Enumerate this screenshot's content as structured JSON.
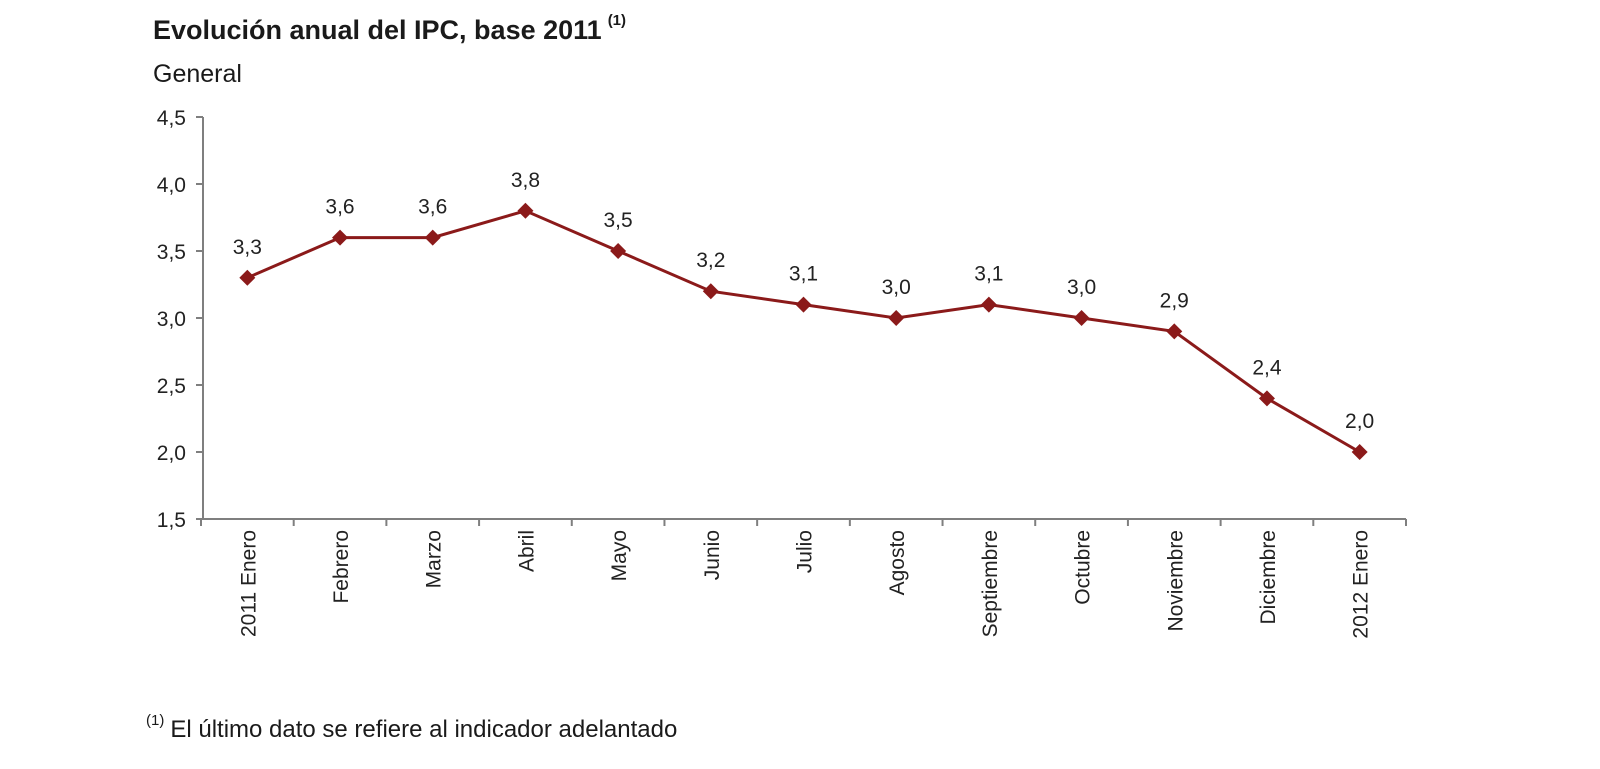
{
  "title": "Evolución anual del IPC, base 2011",
  "title_note": "(1)",
  "subtitle": "General",
  "footnote_mark": "(1)",
  "footnote": "El último dato se refiere al indicador adelantado",
  "colors": {
    "series": "#8b1a1a",
    "axis": "#7f7f7f"
  },
  "chart_data": {
    "type": "line",
    "title": "Evolución anual del IPC, base 2011",
    "subtitle": "General",
    "categories": [
      "2011 Enero",
      "Febrero",
      "Marzo",
      "Abril",
      "Mayo",
      "Junio",
      "Julio",
      "Agosto",
      "Septiembre",
      "Octubre",
      "Noviembre",
      "Diciembre",
      "2012 Enero"
    ],
    "values": [
      3.3,
      3.6,
      3.6,
      3.8,
      3.5,
      3.2,
      3.1,
      3.0,
      3.1,
      3.0,
      2.9,
      2.4,
      2.0
    ],
    "data_labels": [
      "3,3",
      "3,6",
      "3,6",
      "3,8",
      "3,5",
      "3,2",
      "3,1",
      "3,0",
      "3,1",
      "3,0",
      "2,9",
      "2,4",
      "2,0"
    ],
    "ylim": [
      1.5,
      4.5
    ],
    "yticks": [
      1.5,
      2.0,
      2.5,
      3.0,
      3.5,
      4.0,
      4.5
    ],
    "ytick_labels": [
      "1,5",
      "2,0",
      "2,5",
      "3,0",
      "3,5",
      "4,0",
      "4,5"
    ],
    "marker": "diamond",
    "grid": false,
    "legend": "none"
  }
}
